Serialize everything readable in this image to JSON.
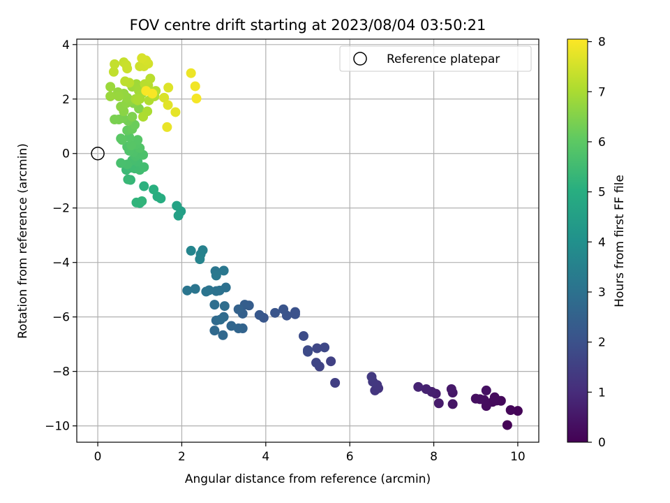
{
  "chart_data": {
    "type": "scatter",
    "title": "FOV centre drift starting at 2023/08/04 03:50:21",
    "xlabel": "Angular distance from reference (arcmin)",
    "ylabel": "Rotation from reference (arcmin)",
    "xlim": [
      -0.5,
      10.5
    ],
    "ylim": [
      -10.6,
      4.2
    ],
    "x_ticks": [
      0,
      2,
      4,
      6,
      8,
      10
    ],
    "y_ticks": [
      -10,
      -8,
      -6,
      -4,
      -2,
      0,
      2,
      4
    ],
    "grid": true,
    "legend": {
      "position": "top-right",
      "entries": [
        "Reference platepar"
      ]
    },
    "reference_point": {
      "x": 0,
      "y": 0,
      "marker": "open circle"
    },
    "colorbar": {
      "label": "Hours from first FF file",
      "range": [
        0,
        8.05
      ],
      "ticks": [
        0,
        1,
        2,
        3,
        4,
        5,
        6,
        7,
        8
      ],
      "colormap": "viridis"
    },
    "points": [
      [
        9.75,
        -9.97,
        0.05
      ],
      [
        10.0,
        -9.45,
        0.08
      ],
      [
        9.83,
        -9.42,
        0.12
      ],
      [
        9.6,
        -9.08,
        0.15
      ],
      [
        9.5,
        -9.07,
        0.18
      ],
      [
        9.4,
        -9.12,
        0.2
      ],
      [
        9.45,
        -8.95,
        0.22
      ],
      [
        9.25,
        -9.27,
        0.25
      ],
      [
        9.2,
        -9.05,
        0.28
      ],
      [
        9.1,
        -9.02,
        0.3
      ],
      [
        9.0,
        -9.0,
        0.32
      ],
      [
        9.25,
        -8.7,
        0.35
      ],
      [
        8.45,
        -9.2,
        0.45
      ],
      [
        8.45,
        -8.78,
        0.5
      ],
      [
        8.42,
        -8.65,
        0.55
      ],
      [
        8.12,
        -9.17,
        0.6
      ],
      [
        8.05,
        -8.82,
        0.65
      ],
      [
        7.95,
        -8.75,
        0.7
      ],
      [
        7.82,
        -8.65,
        0.75
      ],
      [
        7.63,
        -8.57,
        0.8
      ],
      [
        6.68,
        -8.62,
        1.2
      ],
      [
        6.6,
        -8.7,
        1.25
      ],
      [
        6.65,
        -8.5,
        1.28
      ],
      [
        6.55,
        -8.38,
        1.3
      ],
      [
        6.52,
        -8.2,
        1.35
      ],
      [
        5.65,
        -8.42,
        1.5
      ],
      [
        5.55,
        -7.63,
        1.55
      ],
      [
        5.28,
        -7.82,
        1.6
      ],
      [
        5.2,
        -7.68,
        1.65
      ],
      [
        5.22,
        -7.15,
        1.7
      ],
      [
        5.4,
        -7.12,
        1.75
      ],
      [
        5.0,
        -7.28,
        1.8
      ],
      [
        5.0,
        -7.22,
        1.82
      ],
      [
        4.9,
        -6.7,
        1.85
      ],
      [
        4.7,
        -5.82,
        2.0
      ],
      [
        4.7,
        -5.9,
        2.02
      ],
      [
        4.5,
        -5.95,
        2.05
      ],
      [
        4.42,
        -5.72,
        2.08
      ],
      [
        4.22,
        -5.85,
        2.1
      ],
      [
        3.95,
        -6.03,
        2.15
      ],
      [
        3.85,
        -5.93,
        2.2
      ],
      [
        3.6,
        -5.58,
        2.35
      ],
      [
        3.5,
        -5.55,
        2.4
      ],
      [
        3.45,
        -5.88,
        2.45
      ],
      [
        3.35,
        -5.72,
        2.5
      ],
      [
        3.45,
        -6.42,
        2.55
      ],
      [
        3.35,
        -6.42,
        2.6
      ],
      [
        3.18,
        -6.33,
        2.65
      ],
      [
        2.98,
        -6.67,
        2.7
      ],
      [
        2.78,
        -6.5,
        2.75
      ],
      [
        2.82,
        -6.13,
        2.78
      ],
      [
        3.0,
        -6.0,
        2.8
      ],
      [
        2.92,
        -6.1,
        2.82
      ],
      [
        3.02,
        -5.6,
        2.85
      ],
      [
        2.78,
        -5.55,
        2.9
      ],
      [
        3.05,
        -4.92,
        2.95
      ],
      [
        2.9,
        -5.03,
        3.0
      ],
      [
        2.82,
        -5.05,
        3.02
      ],
      [
        2.65,
        -5.02,
        3.05
      ],
      [
        2.58,
        -5.07,
        3.08
      ],
      [
        2.32,
        -4.97,
        3.1
      ],
      [
        2.13,
        -5.03,
        3.12
      ],
      [
        2.8,
        -4.32,
        3.15
      ],
      [
        3.0,
        -4.3,
        3.18
      ],
      [
        2.82,
        -4.48,
        3.2
      ],
      [
        2.5,
        -3.55,
        3.5
      ],
      [
        2.45,
        -3.7,
        3.55
      ],
      [
        2.43,
        -3.88,
        3.6
      ],
      [
        2.22,
        -3.57,
        3.65
      ],
      [
        1.98,
        -2.12,
        4.5
      ],
      [
        1.92,
        -2.28,
        4.55
      ],
      [
        1.88,
        -1.92,
        4.6
      ],
      [
        1.5,
        -1.65,
        4.95
      ],
      [
        1.42,
        -1.58,
        5.0
      ],
      [
        1.33,
        -1.32,
        5.05
      ],
      [
        1.1,
        -1.2,
        5.1
      ],
      [
        1.0,
        -1.82,
        5.15
      ],
      [
        0.92,
        -1.8,
        5.2
      ],
      [
        1.05,
        -1.75,
        5.22
      ],
      [
        0.78,
        -0.97,
        5.3
      ],
      [
        0.72,
        -0.95,
        5.35
      ],
      [
        0.68,
        -0.6,
        5.4
      ],
      [
        0.78,
        -0.52,
        5.45
      ],
      [
        0.88,
        -0.55,
        5.5
      ],
      [
        1.0,
        -0.6,
        5.52
      ],
      [
        1.1,
        -0.5,
        5.55
      ],
      [
        0.95,
        -0.3,
        5.58
      ],
      [
        0.82,
        -0.25,
        5.6
      ],
      [
        0.7,
        -0.4,
        5.62
      ],
      [
        0.55,
        -0.35,
        5.65
      ],
      [
        0.9,
        -0.1,
        5.68
      ],
      [
        0.95,
        0.0,
        5.7
      ],
      [
        1.08,
        -0.05,
        5.72
      ],
      [
        0.85,
        0.05,
        5.75
      ],
      [
        0.75,
        0.1,
        5.78
      ],
      [
        0.7,
        0.25,
        5.8
      ],
      [
        1.0,
        0.2,
        5.82
      ],
      [
        0.92,
        0.35,
        5.85
      ],
      [
        0.95,
        0.5,
        5.88
      ],
      [
        0.8,
        0.3,
        5.9
      ],
      [
        0.75,
        0.6,
        5.92
      ],
      [
        0.55,
        0.55,
        5.95
      ],
      [
        0.58,
        0.5,
        5.98
      ],
      [
        0.7,
        0.85,
        6.1
      ],
      [
        0.82,
        0.9,
        6.15
      ],
      [
        0.88,
        1.05,
        6.2
      ],
      [
        0.72,
        1.2,
        6.3
      ],
      [
        0.6,
        1.3,
        6.35
      ],
      [
        0.5,
        1.25,
        6.38
      ],
      [
        0.4,
        1.25,
        6.4
      ],
      [
        0.82,
        1.35,
        6.45
      ],
      [
        0.98,
        1.65,
        6.5
      ],
      [
        0.85,
        1.85,
        6.55
      ],
      [
        0.62,
        1.55,
        6.6
      ],
      [
        0.55,
        1.72,
        6.62
      ],
      [
        0.68,
        1.85,
        6.65
      ],
      [
        0.78,
        1.95,
        6.68
      ],
      [
        0.7,
        2.05,
        6.7
      ],
      [
        0.62,
        2.2,
        6.72
      ],
      [
        0.48,
        2.25,
        6.75
      ],
      [
        0.5,
        2.1,
        6.78
      ],
      [
        0.3,
        2.1,
        6.8
      ],
      [
        0.3,
        2.45,
        6.82
      ],
      [
        0.82,
        2.45,
        6.85
      ],
      [
        0.92,
        2.55,
        6.88
      ],
      [
        0.98,
        2.3,
        6.9
      ],
      [
        1.05,
        2.2,
        6.92
      ],
      [
        0.9,
        2.0,
        6.95
      ],
      [
        1.0,
        2.0,
        6.98
      ],
      [
        0.95,
        1.95,
        7.0
      ],
      [
        1.18,
        1.55,
        7.02
      ],
      [
        1.08,
        1.35,
        7.05
      ],
      [
        1.22,
        1.95,
        7.08
      ],
      [
        1.35,
        2.1,
        7.1
      ],
      [
        1.38,
        2.3,
        7.12
      ],
      [
        1.2,
        2.5,
        7.15
      ],
      [
        1.12,
        2.55,
        7.18
      ],
      [
        1.25,
        2.75,
        7.2
      ],
      [
        0.75,
        2.6,
        7.22
      ],
      [
        0.65,
        2.65,
        7.25
      ],
      [
        0.38,
        3.0,
        7.3
      ],
      [
        0.4,
        3.28,
        7.32
      ],
      [
        0.62,
        3.35,
        7.35
      ],
      [
        0.68,
        3.25,
        7.38
      ],
      [
        0.7,
        3.12,
        7.4
      ],
      [
        1.0,
        3.2,
        7.45
      ],
      [
        1.1,
        3.2,
        7.5
      ],
      [
        1.2,
        3.3,
        7.52
      ],
      [
        1.15,
        3.42,
        7.55
      ],
      [
        1.05,
        3.5,
        7.58
      ],
      [
        1.58,
        2.05,
        7.6
      ],
      [
        1.68,
        2.42,
        7.65
      ],
      [
        1.67,
        1.78,
        7.7
      ],
      [
        1.85,
        1.52,
        7.75
      ],
      [
        1.65,
        0.97,
        7.8
      ],
      [
        2.22,
        2.95,
        7.85
      ],
      [
        2.32,
        2.47,
        7.9
      ],
      [
        2.35,
        2.02,
        7.95
      ],
      [
        1.3,
        2.2,
        7.97
      ],
      [
        1.15,
        2.3,
        8.0
      ]
    ]
  }
}
